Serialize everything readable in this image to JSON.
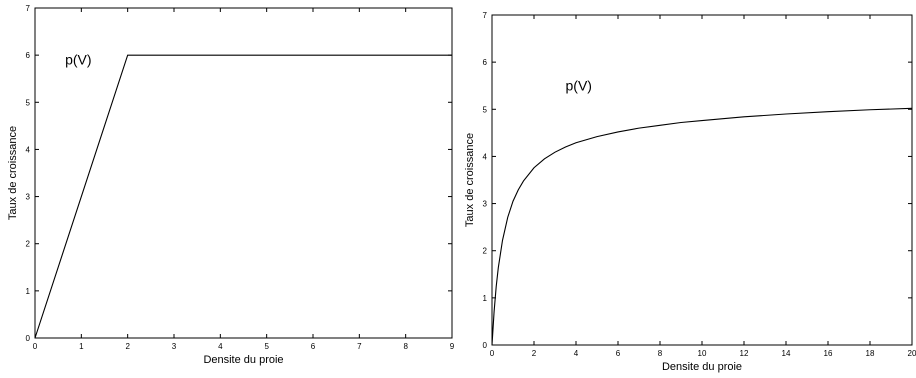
{
  "chart_data": [
    {
      "type": "line",
      "xlabel": "Densite du proie",
      "ylabel": "Taux de croissance",
      "xlim": [
        0,
        9
      ],
      "ylim": [
        0,
        7
      ],
      "xticks": [
        0,
        1,
        2,
        3,
        4,
        5,
        6,
        7,
        8,
        9
      ],
      "yticks": [
        0,
        1,
        2,
        3,
        4,
        5,
        6,
        7
      ],
      "grid": false,
      "annotation": {
        "text": "p(V)",
        "x": 0.65,
        "y": 5.8
      },
      "series": [
        {
          "x": [
            0,
            2,
            9
          ],
          "y": [
            0,
            6,
            6
          ]
        }
      ]
    },
    {
      "type": "line",
      "xlabel": "Densite du proie",
      "ylabel": "Taux de croissance",
      "xlim": [
        0,
        20
      ],
      "ylim": [
        0,
        7
      ],
      "xticks": [
        0,
        2,
        4,
        6,
        8,
        10,
        12,
        14,
        16,
        18,
        20
      ],
      "yticks": [
        0,
        1,
        2,
        3,
        4,
        5,
        6,
        7
      ],
      "grid": false,
      "annotation": {
        "text": "p(V)",
        "x": 3.5,
        "y": 5.4
      },
      "series": [
        {
          "x": [
            0,
            0.1,
            0.2,
            0.3,
            0.5,
            0.75,
            1,
            1.25,
            1.5,
            2,
            2.5,
            3,
            3.5,
            4,
            5,
            6,
            7,
            8,
            9,
            10,
            12,
            14,
            16,
            18,
            20
          ],
          "y": [
            0,
            0.71,
            1.24,
            1.64,
            2.22,
            2.71,
            3.05,
            3.29,
            3.48,
            3.76,
            3.95,
            4.09,
            4.2,
            4.29,
            4.42,
            4.52,
            4.6,
            4.66,
            4.72,
            4.76,
            4.84,
            4.9,
            4.95,
            4.99,
            5.02
          ]
        }
      ]
    }
  ]
}
